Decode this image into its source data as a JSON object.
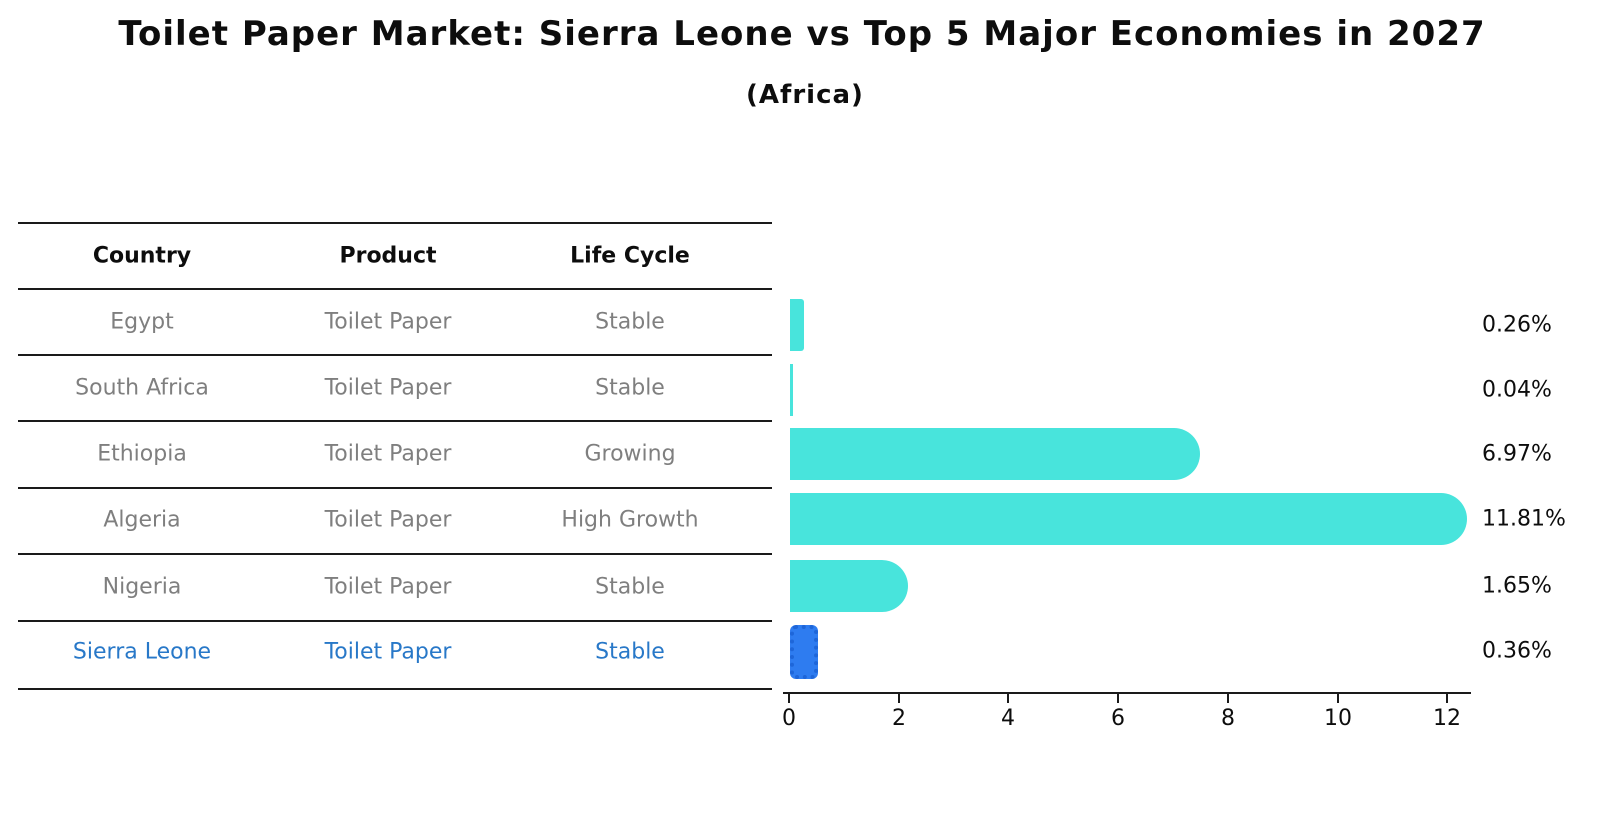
{
  "header": {
    "title": "Toilet Paper Market: Sierra Leone vs Top 5 Major Economies in 2027",
    "subtitle": "(Africa)"
  },
  "table": {
    "headers": [
      "Country",
      "Product",
      "Life Cycle"
    ],
    "rows": [
      {
        "country": "Egypt",
        "product": "Toilet Paper",
        "life_cycle": "Stable"
      },
      {
        "country": "South Africa",
        "product": "Toilet Paper",
        "life_cycle": "Stable"
      },
      {
        "country": "Ethiopia",
        "product": "Toilet Paper",
        "life_cycle": "Growing"
      },
      {
        "country": "Algeria",
        "product": "Toilet Paper",
        "life_cycle": "High Growth"
      },
      {
        "country": "Nigeria",
        "product": "Toilet Paper",
        "life_cycle": "Stable"
      },
      {
        "country": "Sierra Leone",
        "product": "Toilet Paper",
        "life_cycle": "Stable"
      }
    ],
    "highlighted_row": "Sierra Leone"
  },
  "chart_data": {
    "type": "bar",
    "orientation": "horizontal",
    "title": "Toilet Paper Market: Sierra Leone vs Top 5 Major Economies in 2027",
    "subtitle": "(Africa)",
    "categories": [
      "Egypt",
      "South Africa",
      "Ethiopia",
      "Algeria",
      "Nigeria",
      "Sierra Leone"
    ],
    "values": [
      0.26,
      0.04,
      6.97,
      11.81,
      1.65,
      0.36
    ],
    "value_labels": [
      "0.26%",
      "0.04%",
      "6.97%",
      "11.81%",
      "1.65%",
      "0.36%"
    ],
    "highlight_index": 5,
    "x_ticks": [
      "0",
      "2",
      "4",
      "6",
      "8",
      "10",
      "12"
    ],
    "xlim": [
      0,
      12.4
    ],
    "grid": false,
    "legend": false,
    "colors": {
      "bar": "#48E4DC",
      "highlight_bar": "#2E7CF0",
      "highlight_bar_edge": "#1E66D9",
      "highlight_text": "#2878C8",
      "text": "#0d0d0d",
      "muted_text": "#7f7f7f"
    }
  }
}
